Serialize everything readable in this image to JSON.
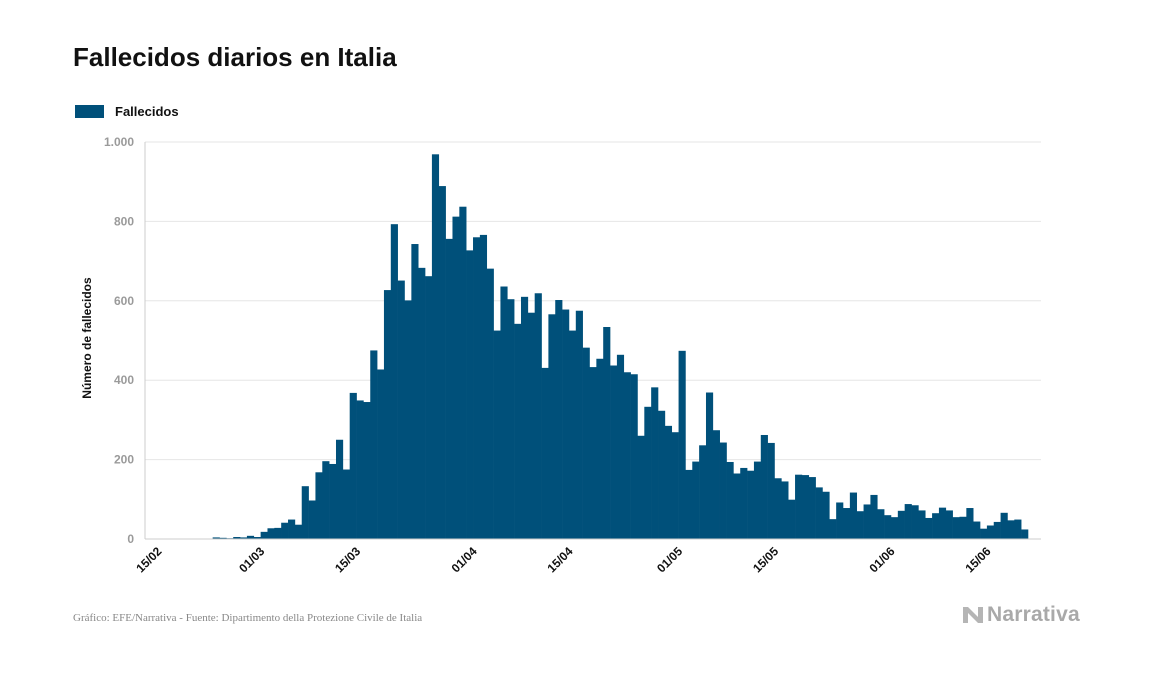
{
  "title": "Fallecidos diarios en Italia",
  "footer": "Gráfico: EFE/Narrativa - Fuente: Dipartimento della Protezione Civile de Italia",
  "logo": {
    "text": "Narrativa",
    "icon": "n-logo-icon"
  },
  "colors": {
    "bar": "#00507a",
    "grid": "#e6e6e6",
    "axis": "#cccccc"
  },
  "chart_data": {
    "type": "bar",
    "title": "Fallecidos diarios en Italia",
    "xlabel": "",
    "ylabel": "Número de fallecidos",
    "ylim": [
      0,
      1000
    ],
    "yticks": [
      0,
      200,
      400,
      600,
      800,
      1000
    ],
    "ytick_labels": [
      "0",
      "200",
      "400",
      "600",
      "800",
      "1.000"
    ],
    "grid": true,
    "legend": "top-left",
    "x_start": "2020-02-15",
    "x_end": "2020-06-21",
    "xtick_dates": [
      "2020-02-15",
      "2020-03-01",
      "2020-03-15",
      "2020-04-01",
      "2020-04-15",
      "2020-05-01",
      "2020-05-15",
      "2020-06-01",
      "2020-06-15"
    ],
    "xtick_labels": [
      "15/02",
      "01/03",
      "15/03",
      "01/04",
      "15/04",
      "01/05",
      "15/05",
      "01/06",
      "15/06"
    ],
    "series": [
      {
        "name": "Fallecidos",
        "start_date": "2020-02-22",
        "values": [
          1,
          1,
          4,
          3,
          2,
          5,
          4,
          8,
          5,
          18,
          27,
          28,
          41,
          49,
          36,
          133,
          97,
          168,
          196,
          189,
          250,
          175,
          368,
          349,
          345,
          475,
          427,
          627,
          793,
          651,
          601,
          743,
          683,
          662,
          969,
          889,
          756,
          812,
          837,
          727,
          760,
          766,
          681,
          525,
          636,
          604,
          542,
          610,
          570,
          619,
          431,
          566,
          602,
          578,
          525,
          575,
          482,
          433,
          454,
          534,
          437,
          464,
          420,
          415,
          260,
          333,
          382,
          323,
          285,
          269,
          474,
          174,
          195,
          236,
          369,
          274,
          243,
          194,
          165,
          179,
          172,
          195,
          262,
          242,
          153,
          145,
          99,
          162,
          161,
          156,
          130,
          119,
          50,
          92,
          78,
          117,
          70,
          87,
          111,
          75,
          60,
          55,
          71,
          88,
          85,
          72,
          53,
          65,
          79,
          72,
          55,
          56,
          78,
          44,
          26,
          34,
          43,
          66,
          47,
          49,
          24
        ]
      }
    ]
  }
}
